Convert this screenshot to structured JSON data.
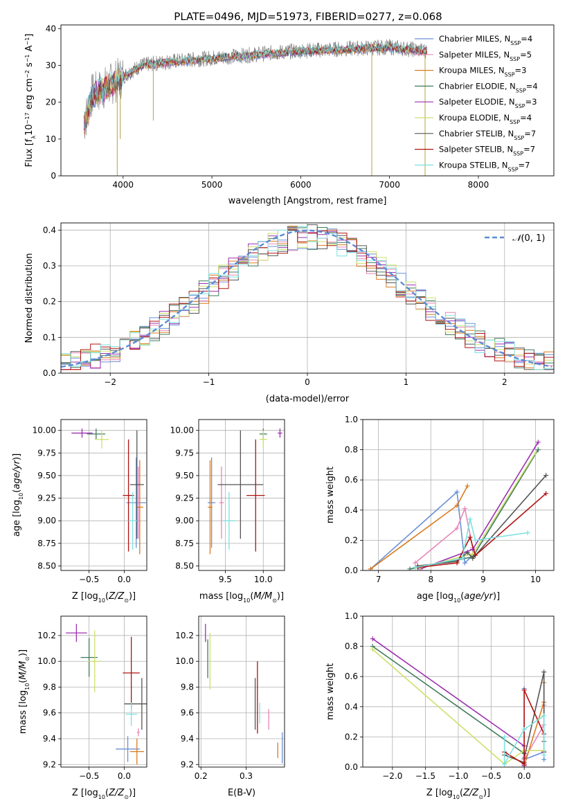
{
  "figure": {
    "title": "PLATE=0496, MJD=51973, FIBERID=0277, z=0.068"
  },
  "chart_data": [
    {
      "type": "line",
      "id": "spectrum",
      "title": "PLATE=0496, MJD=51973, FIBERID=0277, z=0.068",
      "xlabel": "wavelength [Angstrom, rest frame]",
      "ylabel": "Flux [fλ 10⁻¹⁷ erg cm⁻² s⁻¹ A⁻¹]",
      "xlim": [
        3300,
        8850
      ],
      "ylim": [
        0,
        41
      ],
      "xticks": [
        4000,
        5000,
        6000,
        7000,
        8000
      ],
      "yticks": [
        0,
        10,
        20,
        30,
        40
      ],
      "grid": false,
      "legend_position": "right",
      "data_x_range": [
        3560,
        7420
      ],
      "data_envelope": [
        [
          3560,
          14
        ],
        [
          3650,
          22
        ],
        [
          3800,
          24
        ],
        [
          4000,
          27
        ],
        [
          4200,
          30
        ],
        [
          4500,
          31
        ],
        [
          5000,
          32
        ],
        [
          5500,
          33
        ],
        [
          6000,
          34
        ],
        [
          6500,
          34.5
        ],
        [
          7000,
          35
        ],
        [
          7400,
          34
        ]
      ],
      "series": [
        {
          "name": "Chabrier MILES, N_SSP=4",
          "color": "#6a8fd6"
        },
        {
          "name": "Salpeter MILES, N_SSP=5",
          "color": "#e886b8"
        },
        {
          "name": "Kroupa MILES, N_SSP=3",
          "color": "#d97a1e"
        },
        {
          "name": "Chabrier ELODIE, N_SSP=4",
          "color": "#3f7a5a"
        },
        {
          "name": "Salpeter ELODIE, N_SSP=3",
          "color": "#9b2fb0"
        },
        {
          "name": "Kroupa ELODIE, N_SSP=4",
          "color": "#cde06a"
        },
        {
          "name": "Chabrier STELIB, N_SSP=7",
          "color": "#555555"
        },
        {
          "name": "Salpeter STELIB, N_SSP=7",
          "color": "#b01010"
        },
        {
          "name": "Kroupa STELIB, N_SSP=7",
          "color": "#7de0e0"
        }
      ],
      "legend_labels": [
        {
          "base": "Chabrier MILES, N",
          "sub": "SSP",
          "tail": "=4"
        },
        {
          "base": "Salpeter MILES, N",
          "sub": "SSP",
          "tail": "=5"
        },
        {
          "base": "Kroupa MILES, N",
          "sub": "SSP",
          "tail": "=3"
        },
        {
          "base": "Chabrier ELODIE, N",
          "sub": "SSP",
          "tail": "=4"
        },
        {
          "base": "Salpeter ELODIE, N",
          "sub": "SSP",
          "tail": "=3"
        },
        {
          "base": "Kroupa ELODIE, N",
          "sub": "SSP",
          "tail": "=4"
        },
        {
          "base": "Chabrier STELIB, N",
          "sub": "SSP",
          "tail": "=7"
        },
        {
          "base": "Salpeter STELIB, N",
          "sub": "SSP",
          "tail": "=7"
        },
        {
          "base": "Kroupa STELIB, N",
          "sub": "SSP",
          "tail": "=7"
        }
      ],
      "data_color": "#808080"
    },
    {
      "type": "line",
      "id": "residuals",
      "xlabel": "(data-model)/error",
      "ylabel": "Normed distribution",
      "xlim": [
        -2.5,
        2.5
      ],
      "ylim": [
        0,
        0.42
      ],
      "xticks": [
        -2,
        -1,
        0,
        1,
        2
      ],
      "yticks": [
        0.0,
        0.1,
        0.2,
        0.3,
        0.4
      ],
      "grid": true,
      "legend_position": "top-right",
      "reference_curve": {
        "name": "N(0,1)",
        "color": "#5b8bd6",
        "style": "dashed"
      },
      "histogram_bin_width": 0.1,
      "histogram_shape": "gaussian, peak ~0.36-0.40 near 0, ~0.05 at |x|=2.5"
    },
    {
      "type": "scatter",
      "id": "age_vs_Z",
      "xlabel": "Z [log10(Z/Z⊙)]",
      "ylabel": "age  [log10(age/yr)]",
      "xlim": [
        -0.9,
        0.32
      ],
      "ylim": [
        8.45,
        10.12
      ],
      "xticks": [
        -0.5,
        0.0
      ],
      "yticks": [
        8.5,
        8.75,
        9.0,
        9.25,
        9.5,
        9.75,
        10.0
      ],
      "grid": true,
      "points": [
        {
          "series": "Chabrier MILES",
          "x": 0.17,
          "y": 9.2,
          "xerr": 0.14,
          "yerr": 0.5,
          "color": "#6a8fd6"
        },
        {
          "series": "Salpeter MILES",
          "x": 0.2,
          "y": 9.2,
          "xerr": 0.02,
          "yerr": 0.4,
          "color": "#e886b8"
        },
        {
          "series": "Kroupa MILES",
          "x": 0.22,
          "y": 9.15,
          "xerr": 0.05,
          "yerr": 0.52,
          "color": "#d97a1e"
        },
        {
          "series": "Chabrier ELODIE",
          "x": -0.4,
          "y": 9.96,
          "xerr": 0.13,
          "yerr": 0.06,
          "color": "#3f7a5a"
        },
        {
          "series": "Salpeter ELODIE",
          "x": -0.6,
          "y": 9.97,
          "xerr": 0.15,
          "yerr": 0.05,
          "color": "#9b2fb0"
        },
        {
          "series": "Kroupa ELODIE",
          "x": -0.32,
          "y": 9.9,
          "xerr": 0.1,
          "yerr": 0.1,
          "color": "#cde06a"
        },
        {
          "series": "Chabrier STELIB",
          "x": 0.18,
          "y": 9.4,
          "xerr": 0.1,
          "yerr": 0.6,
          "color": "#555555"
        },
        {
          "series": "Salpeter STELIB",
          "x": 0.06,
          "y": 9.28,
          "xerr": 0.08,
          "yerr": 0.62,
          "color": "#b01010"
        },
        {
          "series": "Kroupa STELIB",
          "x": 0.12,
          "y": 9.0,
          "xerr": 0.06,
          "yerr": 0.32,
          "color": "#7de0e0"
        }
      ]
    },
    {
      "type": "scatter",
      "id": "age_vs_mass",
      "xlabel": "mass [log10(M/M⊙)]",
      "ylabel": "",
      "xlim": [
        9.15,
        10.28
      ],
      "ylim": [
        8.45,
        10.12
      ],
      "xticks": [
        9.5,
        10.0
      ],
      "yticks": [
        8.5,
        8.75,
        9.0,
        9.25,
        9.5,
        9.75,
        10.0
      ],
      "grid": true,
      "points": [
        {
          "series": "Chabrier MILES",
          "x": 9.32,
          "y": 9.2,
          "xerr": 0.05,
          "yerr": 0.5,
          "color": "#6a8fd6"
        },
        {
          "series": "Salpeter MILES",
          "x": 9.45,
          "y": 9.2,
          "xerr": 0.03,
          "yerr": 0.4,
          "color": "#e886b8"
        },
        {
          "series": "Kroupa MILES",
          "x": 9.3,
          "y": 9.15,
          "xerr": 0.03,
          "yerr": 0.52,
          "color": "#d97a1e"
        },
        {
          "series": "Chabrier ELODIE",
          "x": 10.0,
          "y": 9.96,
          "xerr": 0.05,
          "yerr": 0.06,
          "color": "#3f7a5a"
        },
        {
          "series": "Salpeter ELODIE",
          "x": 10.22,
          "y": 9.97,
          "xerr": 0.03,
          "yerr": 0.05,
          "color": "#9b2fb0"
        },
        {
          "series": "Kroupa ELODIE",
          "x": 10.0,
          "y": 9.9,
          "xerr": 0.05,
          "yerr": 0.1,
          "color": "#cde06a"
        },
        {
          "series": "Chabrier STELIB",
          "x": 9.7,
          "y": 9.4,
          "xerr": 0.3,
          "yerr": 0.6,
          "color": "#555555"
        },
        {
          "series": "Salpeter STELIB",
          "x": 9.9,
          "y": 9.28,
          "xerr": 0.12,
          "yerr": 0.62,
          "color": "#b01010"
        },
        {
          "series": "Kroupa STELIB",
          "x": 9.55,
          "y": 9.0,
          "xerr": 0.08,
          "yerr": 0.32,
          "color": "#7de0e0"
        }
      ]
    },
    {
      "type": "line",
      "id": "massweight_vs_age",
      "xlabel": "age  [log10(age/yr)]",
      "ylabel": "mass weight",
      "xlim": [
        6.7,
        10.35
      ],
      "ylim": [
        0,
        1.0
      ],
      "xticks": [
        7,
        8,
        9,
        10
      ],
      "yticks": [
        0.0,
        0.2,
        0.4,
        0.6,
        0.8,
        1.0
      ],
      "grid": true,
      "series": [
        {
          "name": "Chabrier MILES",
          "color": "#6a8fd6",
          "x": [
            6.85,
            8.5,
            8.65,
            8.8
          ],
          "y": [
            0.01,
            0.52,
            0.05,
            0.1
          ]
        },
        {
          "name": "Salpeter MILES",
          "color": "#e886b8",
          "x": [
            7.7,
            8.5,
            8.65,
            8.8
          ],
          "y": [
            0.05,
            0.28,
            0.41,
            0.15
          ]
        },
        {
          "name": "Kroupa MILES",
          "color": "#d97a1e",
          "x": [
            6.85,
            8.5,
            8.7
          ],
          "y": [
            0.01,
            0.43,
            0.56
          ]
        },
        {
          "name": "Chabrier ELODIE",
          "color": "#3f7a5a",
          "x": [
            7.6,
            8.8,
            10.05
          ],
          "y": [
            0.01,
            0.09,
            0.8
          ]
        },
        {
          "name": "Salpeter ELODIE",
          "color": "#9b2fb0",
          "x": [
            7.8,
            8.8,
            10.05
          ],
          "y": [
            0.01,
            0.14,
            0.85
          ]
        },
        {
          "name": "Kroupa ELODIE",
          "color": "#cde06a",
          "x": [
            7.8,
            8.8,
            10.0
          ],
          "y": [
            0.02,
            0.11,
            0.78
          ]
        },
        {
          "name": "Chabrier STELIB",
          "color": "#555555",
          "x": [
            7.75,
            8.5,
            8.7,
            8.8,
            10.2
          ],
          "y": [
            0.03,
            0.06,
            0.12,
            0.08,
            0.63
          ]
        },
        {
          "name": "Salpeter STELIB",
          "color": "#b01010",
          "x": [
            7.75,
            8.5,
            8.75,
            8.85,
            10.2
          ],
          "y": [
            0.02,
            0.05,
            0.22,
            0.1,
            0.51
          ]
        },
        {
          "name": "Kroupa STELIB",
          "color": "#7de0e0",
          "x": [
            7.7,
            8.6,
            8.75,
            8.85,
            9.85
          ],
          "y": [
            0.02,
            0.08,
            0.34,
            0.2,
            0.25
          ]
        }
      ]
    },
    {
      "type": "scatter",
      "id": "mass_vs_Z",
      "xlabel": "Z [log10(Z/Z⊙)]",
      "ylabel": "mass [log10(M/M⊙)]",
      "xlim": [
        -0.9,
        0.32
      ],
      "ylim": [
        9.18,
        10.35
      ],
      "xticks": [
        -0.5,
        0.0
      ],
      "yticks": [
        9.2,
        9.4,
        9.6,
        9.8,
        10.0,
        10.2
      ],
      "grid": true,
      "points": [
        {
          "series": "Chabrier MILES",
          "x": 0.05,
          "y": 9.32,
          "xerr": 0.17,
          "yerr": 0.1,
          "color": "#6a8fd6"
        },
        {
          "series": "Salpeter MILES",
          "x": 0.2,
          "y": 9.45,
          "xerr": 0.02,
          "yerr": 0.03,
          "color": "#e886b8"
        },
        {
          "series": "Kroupa MILES",
          "x": 0.18,
          "y": 9.3,
          "xerr": 0.1,
          "yerr": 0.1,
          "color": "#d97a1e"
        },
        {
          "series": "Chabrier ELODIE",
          "x": -0.5,
          "y": 10.03,
          "xerr": 0.12,
          "yerr": 0.15,
          "color": "#3f7a5a"
        },
        {
          "series": "Salpeter ELODIE",
          "x": -0.68,
          "y": 10.22,
          "xerr": 0.15,
          "yerr": 0.07,
          "color": "#9b2fb0"
        },
        {
          "series": "Kroupa ELODIE",
          "x": -0.42,
          "y": 10.0,
          "xerr": 0.1,
          "yerr": 0.24,
          "color": "#cde06a"
        },
        {
          "series": "Chabrier STELIB",
          "x": 0.25,
          "y": 9.67,
          "xerr": 0.25,
          "yerr": 0.2,
          "color": "#555555"
        },
        {
          "series": "Salpeter STELIB",
          "x": 0.1,
          "y": 9.91,
          "xerr": 0.12,
          "yerr": 0.28,
          "color": "#b01010"
        },
        {
          "series": "Kroupa STELIB",
          "x": 0.1,
          "y": 9.59,
          "xerr": 0.08,
          "yerr": 0.09,
          "color": "#7de0e0"
        }
      ]
    },
    {
      "type": "scatter",
      "id": "mass_vs_EBV",
      "xlabel": "E(B-V)",
      "ylabel": "",
      "xlim": [
        0.195,
        0.385
      ],
      "ylim": [
        9.18,
        10.35
      ],
      "xticks": [
        0.2,
        0.3
      ],
      "yticks": [
        9.2,
        9.4,
        9.6,
        9.8,
        10.0,
        10.2
      ],
      "grid": true,
      "points": [
        {
          "series": "Chabrier MILES",
          "x": 0.38,
          "y": 9.33,
          "xerr": 0.0,
          "yerr": 0.12,
          "color": "#6a8fd6"
        },
        {
          "series": "Salpeter MILES",
          "x": 0.35,
          "y": 9.55,
          "xerr": 0.0,
          "yerr": 0.08,
          "color": "#e886b8"
        },
        {
          "series": "Kroupa MILES",
          "x": 0.37,
          "y": 9.31,
          "xerr": 0.0,
          "yerr": 0.06,
          "color": "#d97a1e"
        },
        {
          "series": "Chabrier ELODIE",
          "x": 0.215,
          "y": 10.02,
          "xerr": 0.0,
          "yerr": 0.15,
          "color": "#3f7a5a"
        },
        {
          "series": "Salpeter ELODIE",
          "x": 0.21,
          "y": 10.22,
          "xerr": 0.0,
          "yerr": 0.07,
          "color": "#9b2fb0"
        },
        {
          "series": "Kroupa ELODIE",
          "x": 0.22,
          "y": 10.0,
          "xerr": 0.0,
          "yerr": 0.22,
          "color": "#cde06a"
        },
        {
          "series": "Chabrier STELIB",
          "x": 0.32,
          "y": 9.67,
          "xerr": 0.0,
          "yerr": 0.2,
          "color": "#555555"
        },
        {
          "series": "Salpeter STELIB",
          "x": 0.325,
          "y": 9.72,
          "xerr": 0.0,
          "yerr": 0.28,
          "color": "#b01010"
        },
        {
          "series": "Kroupa STELIB",
          "x": 0.33,
          "y": 9.6,
          "xerr": 0.0,
          "yerr": 0.08,
          "color": "#7de0e0"
        }
      ]
    },
    {
      "type": "line",
      "id": "massweight_vs_Z",
      "xlabel": "Z [log10(Z/Z⊙)]",
      "ylabel": "mass weight",
      "xlim": [
        -2.45,
        0.45
      ],
      "ylim": [
        0,
        1.0
      ],
      "xticks": [
        -2.0,
        -1.5,
        -1.0,
        -0.5,
        0.0
      ],
      "yticks": [
        0.0,
        0.2,
        0.4,
        0.6,
        0.8,
        1.0
      ],
      "grid": true,
      "series": [
        {
          "name": "Chabrier MILES",
          "color": "#6a8fd6",
          "x": [
            0.0,
            0.0,
            0.3,
            0.3
          ],
          "y": [
            0.52,
            0.05,
            0.1,
            0.05
          ]
        },
        {
          "name": "Salpeter MILES",
          "color": "#e886b8",
          "x": [
            0.0,
            0.3,
            0.3
          ],
          "y": [
            0.05,
            0.28,
            0.41
          ]
        },
        {
          "name": "Kroupa MILES",
          "color": "#d97a1e",
          "x": [
            0.0,
            0.3,
            0.3
          ],
          "y": [
            0.01,
            0.43,
            0.56
          ]
        },
        {
          "name": "Chabrier ELODIE",
          "color": "#3f7a5a",
          "x": [
            -2.3,
            0.0,
            0.0
          ],
          "y": [
            0.8,
            0.09,
            0.01
          ]
        },
        {
          "name": "Salpeter ELODIE",
          "color": "#9b2fb0",
          "x": [
            -2.3,
            0.0,
            0.0
          ],
          "y": [
            0.85,
            0.14,
            0.01
          ]
        },
        {
          "name": "Kroupa ELODIE",
          "color": "#cde06a",
          "x": [
            -2.3,
            -0.3,
            0.0,
            0.3
          ],
          "y": [
            0.78,
            0.02,
            0.11,
            0.11
          ]
        },
        {
          "name": "Chabrier STELIB",
          "color": "#555555",
          "x": [
            -0.3,
            0.0,
            0.0,
            0.3,
            0.3
          ],
          "y": [
            0.08,
            0.03,
            0.06,
            0.63,
            0.17
          ]
        },
        {
          "name": "Salpeter STELIB",
          "color": "#b01010",
          "x": [
            -0.3,
            0.0,
            0.0,
            0.3,
            0.3
          ],
          "y": [
            0.1,
            0.02,
            0.51,
            0.22,
            0.1
          ]
        },
        {
          "name": "Kroupa STELIB",
          "color": "#7de0e0",
          "x": [
            -0.3,
            -0.3,
            0.0,
            0.3,
            0.3
          ],
          "y": [
            0.2,
            0.02,
            0.25,
            0.34,
            0.08
          ]
        }
      ]
    }
  ]
}
